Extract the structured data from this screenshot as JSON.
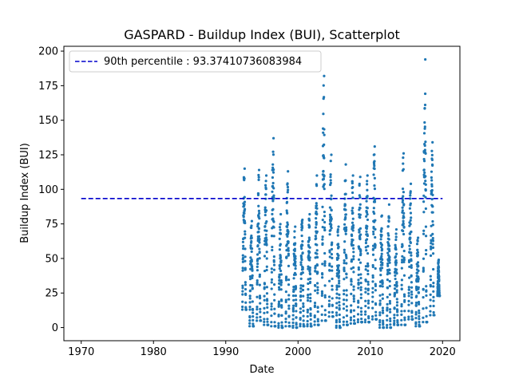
{
  "chart_data": {
    "type": "scatter",
    "title": "GASPARD - Buildup Index (BUI), Scatterplot",
    "xlabel": "Date",
    "ylabel": "Buildup Index (BUI)",
    "xlim": [
      1967.6,
      2022.4
    ],
    "ylim": [
      -9.5,
      203.5
    ],
    "xticks": [
      1970,
      1980,
      1990,
      2000,
      2010,
      2020
    ],
    "yticks": [
      0,
      25,
      50,
      75,
      100,
      125,
      150,
      175,
      200
    ],
    "grid": false,
    "legend_position": "top-left",
    "series": [
      {
        "name": "",
        "kind": "scatter",
        "color": "#1f77b4",
        "seasons": [
          {
            "year": 1992,
            "start": 1992.3,
            "end": 1992.85,
            "low": 13,
            "peak": 115
          },
          {
            "year": 1993,
            "start": 1993.3,
            "end": 1993.85,
            "low": 1,
            "peak": 77
          },
          {
            "year": 1994,
            "start": 1994.3,
            "end": 1994.85,
            "low": 5,
            "peak": 114
          },
          {
            "year": 1995,
            "start": 1995.3,
            "end": 1995.85,
            "low": 2,
            "peak": 110
          },
          {
            "year": 1996,
            "start": 1996.3,
            "end": 1996.85,
            "low": 1,
            "peak": 137
          },
          {
            "year": 1997,
            "start": 1997.3,
            "end": 1997.85,
            "low": 0,
            "peak": 82
          },
          {
            "year": 1998,
            "start": 1998.3,
            "end": 1998.85,
            "low": 1,
            "peak": 113
          },
          {
            "year": 1999,
            "start": 1999.3,
            "end": 1999.85,
            "low": 0,
            "peak": 73
          },
          {
            "year": 2000,
            "start": 2000.3,
            "end": 2000.85,
            "low": 1,
            "peak": 78
          },
          {
            "year": 2001,
            "start": 2001.3,
            "end": 2001.85,
            "low": 1,
            "peak": 82
          },
          {
            "year": 2002,
            "start": 2002.3,
            "end": 2002.85,
            "low": 2,
            "peak": 110
          },
          {
            "year": 2003,
            "start": 2003.3,
            "end": 2003.85,
            "low": 5,
            "peak": 182
          },
          {
            "year": 2004,
            "start": 2004.3,
            "end": 2004.85,
            "low": 8,
            "peak": 125
          },
          {
            "year": 2005,
            "start": 2005.3,
            "end": 2005.85,
            "low": 0,
            "peak": 73
          },
          {
            "year": 2006,
            "start": 2006.3,
            "end": 2006.85,
            "low": 2,
            "peak": 118
          },
          {
            "year": 2007,
            "start": 2007.3,
            "end": 2007.85,
            "low": 3,
            "peak": 110
          },
          {
            "year": 2008,
            "start": 2008.3,
            "end": 2008.85,
            "low": 4,
            "peak": 109
          },
          {
            "year": 2009,
            "start": 2009.3,
            "end": 2009.85,
            "low": 4,
            "peak": 110
          },
          {
            "year": 2010,
            "start": 2010.3,
            "end": 2010.85,
            "low": 6,
            "peak": 131
          },
          {
            "year": 2011,
            "start": 2011.3,
            "end": 2011.85,
            "low": 0,
            "peak": 81
          },
          {
            "year": 2012,
            "start": 2012.3,
            "end": 2012.85,
            "low": 0,
            "peak": 89
          },
          {
            "year": 2013,
            "start": 2013.3,
            "end": 2013.85,
            "low": 2,
            "peak": 71
          },
          {
            "year": 2014,
            "start": 2014.3,
            "end": 2014.85,
            "low": 2,
            "peak": 126
          },
          {
            "year": 2015,
            "start": 2015.3,
            "end": 2015.85,
            "low": 6,
            "peak": 104
          },
          {
            "year": 2016,
            "start": 2016.3,
            "end": 2016.85,
            "low": 1,
            "peak": 65
          },
          {
            "year": 2017,
            "start": 2017.3,
            "end": 2017.85,
            "low": 4,
            "peak": 194
          },
          {
            "year": 2018,
            "start": 2018.3,
            "end": 2018.85,
            "low": 9,
            "peak": 134
          },
          {
            "year": 2019,
            "start": 2019.3,
            "end": 2019.6,
            "low": 23,
            "peak": 49
          }
        ]
      },
      {
        "name": "90th percentile : 93.37410736083984",
        "kind": "line",
        "style": "dashed",
        "color": "#0000cc",
        "x": [
          1970,
          2020
        ],
        "y": [
          93.37410736083984,
          93.37410736083984
        ]
      }
    ]
  }
}
